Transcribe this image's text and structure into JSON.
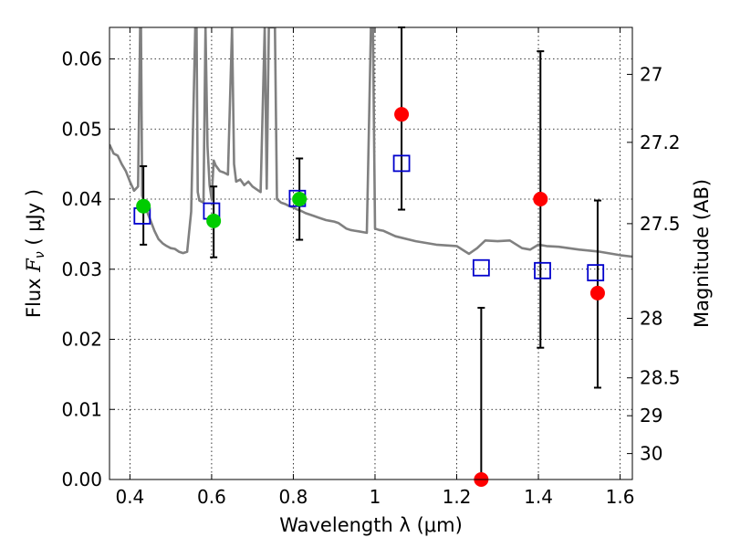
{
  "chart_data": {
    "type": "scatter",
    "xlabel": "Wavelength  λ (μm)",
    "ylabel": "Flux  F_ν  ( μJy )",
    "ylabel_parts": {
      "prefix": "Flux  ",
      "symbol": "F",
      "subscript": "ν",
      "suffix": "  ( μJy )"
    },
    "y2label": "Magnitude (AB)",
    "xlim": [
      0.35,
      1.63
    ],
    "ylim": [
      0.0,
      0.0645
    ],
    "grid": true,
    "x_ticks": [
      0.4,
      0.6,
      0.8,
      1.0,
      1.2,
      1.4,
      1.6
    ],
    "x_tick_labels": [
      "0.4",
      "0.6",
      "0.8",
      "1",
      "1.2",
      "1.4",
      "1.6"
    ],
    "y_ticks": [
      0.0,
      0.01,
      0.02,
      0.03,
      0.04,
      0.05,
      0.06
    ],
    "y_tick_labels": [
      "0.00",
      "0.01",
      "0.02",
      "0.03",
      "0.04",
      "0.05",
      "0.06"
    ],
    "y2_ticks": [
      {
        "label": "27",
        "flux": 0.0578
      },
      {
        "label": "27.2",
        "flux": 0.0481
      },
      {
        "label": "27.5",
        "flux": 0.0365
      },
      {
        "label": "28",
        "flux": 0.023
      },
      {
        "label": "28.5",
        "flux": 0.0145
      },
      {
        "label": "29",
        "flux": 0.0091
      },
      {
        "label": "30",
        "flux": 0.0037
      }
    ],
    "series": [
      {
        "marker": "line",
        "color": "#808080",
        "x": [
          0.35,
          0.36,
          0.37,
          0.38,
          0.39,
          0.4,
          0.41,
          0.42,
          0.425,
          0.427,
          0.43,
          0.44,
          0.45,
          0.46,
          0.47,
          0.48,
          0.49,
          0.5,
          0.51,
          0.52,
          0.53,
          0.54,
          0.55,
          0.56,
          0.563,
          0.566,
          0.57,
          0.58,
          0.585,
          0.59,
          0.595,
          0.6,
          0.605,
          0.61,
          0.62,
          0.63,
          0.64,
          0.65,
          0.655,
          0.66,
          0.67,
          0.68,
          0.69,
          0.7,
          0.71,
          0.72,
          0.73,
          0.735,
          0.74,
          0.745,
          0.75,
          0.755,
          0.76,
          0.77,
          0.78,
          0.79,
          0.8,
          0.81,
          0.82,
          0.83,
          0.84,
          0.85,
          0.86,
          0.87,
          0.88,
          0.89,
          0.9,
          0.91,
          0.92,
          0.93,
          0.94,
          0.95,
          0.96,
          0.97,
          0.98,
          0.99,
          0.995,
          1.0,
          1.01,
          1.02,
          1.05,
          1.1,
          1.15,
          1.2,
          1.23,
          1.25,
          1.27,
          1.3,
          1.33,
          1.36,
          1.38,
          1.4,
          1.42,
          1.45,
          1.5,
          1.55,
          1.6,
          1.63
        ],
        "values": [
          0.0478,
          0.0465,
          0.0462,
          0.045,
          0.044,
          0.0425,
          0.0412,
          0.0418,
          0.0645,
          0.0645,
          0.0405,
          0.0385,
          0.037,
          0.0355,
          0.0343,
          0.0337,
          0.0333,
          0.033,
          0.0329,
          0.0325,
          0.0323,
          0.0325,
          0.0382,
          0.0645,
          0.0645,
          0.041,
          0.0398,
          0.0395,
          0.0645,
          0.0475,
          0.042,
          0.04,
          0.0455,
          0.0448,
          0.044,
          0.0438,
          0.0435,
          0.0645,
          0.045,
          0.0425,
          0.0428,
          0.042,
          0.0425,
          0.0418,
          0.0414,
          0.041,
          0.0645,
          0.0415,
          0.0645,
          0.0645,
          0.0645,
          0.0645,
          0.04,
          0.0395,
          0.0393,
          0.039,
          0.0388,
          0.0385,
          0.0383,
          0.038,
          0.0378,
          0.0376,
          0.0374,
          0.0372,
          0.037,
          0.0369,
          0.0368,
          0.0366,
          0.0362,
          0.0358,
          0.0356,
          0.0355,
          0.0354,
          0.0353,
          0.0352,
          0.0645,
          0.0645,
          0.0358,
          0.0356,
          0.0355,
          0.0347,
          0.034,
          0.0335,
          0.0333,
          0.0322,
          0.033,
          0.0341,
          0.034,
          0.0341,
          0.033,
          0.0328,
          0.0335,
          0.0333,
          0.0332,
          0.0328,
          0.0325,
          0.032,
          0.0318
        ]
      },
      {
        "marker": "open-square",
        "color": "#0000cc",
        "x": [
          0.43,
          0.6,
          0.81,
          1.065,
          1.26,
          1.41,
          1.54
        ],
        "values": [
          0.0376,
          0.0383,
          0.0401,
          0.0451,
          0.0302,
          0.0298,
          0.0295
        ]
      },
      {
        "marker": "filled-circle",
        "color": "#00cc00",
        "x": [
          0.433,
          0.605,
          0.815
        ],
        "values": [
          0.039,
          0.0369,
          0.04
        ]
      },
      {
        "marker": "filled-circle",
        "color": "#ff0000",
        "x": [
          1.065,
          1.26,
          1.405,
          1.545
        ],
        "values": [
          0.0521,
          0.0,
          0.04,
          0.0266
        ]
      }
    ],
    "error_bars": [
      {
        "x": 0.433,
        "low": 0.0335,
        "high": 0.0447
      },
      {
        "x": 0.605,
        "low": 0.0317,
        "high": 0.0418
      },
      {
        "x": 0.815,
        "low": 0.0342,
        "high": 0.0458
      },
      {
        "x": 1.065,
        "low": 0.0385,
        "high": 0.0645
      },
      {
        "x": 1.26,
        "low": 0.0,
        "high": 0.0245
      },
      {
        "x": 1.405,
        "low": 0.0188,
        "high": 0.0611
      },
      {
        "x": 1.545,
        "low": 0.0131,
        "high": 0.0398
      }
    ]
  }
}
